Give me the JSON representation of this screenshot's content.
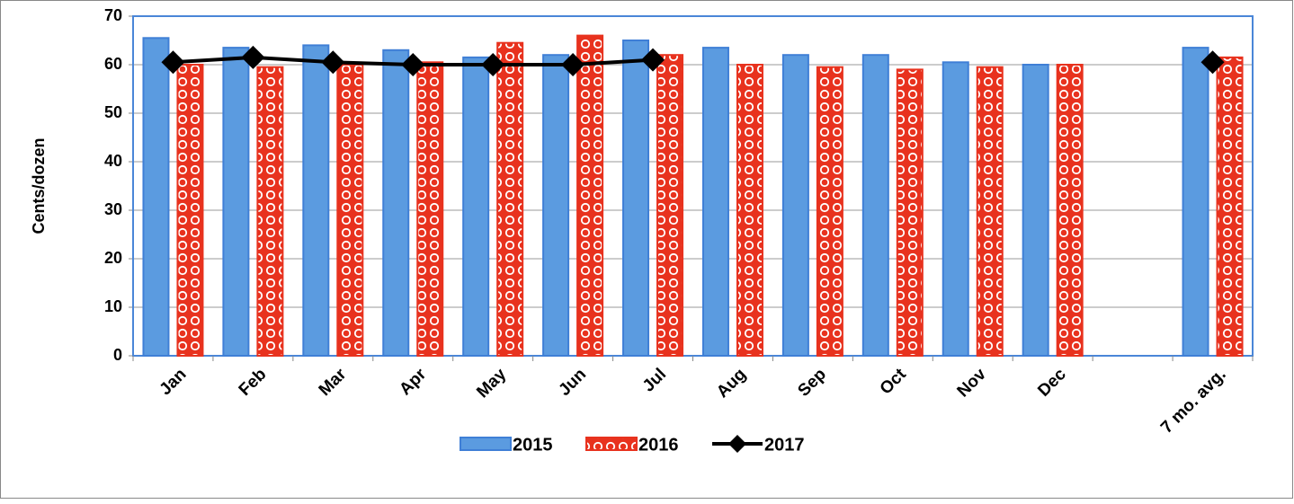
{
  "chart_data": {
    "type": "bar",
    "y_label": "Cents/dozen",
    "categories": [
      "Jan",
      "Feb",
      "Mar",
      "Apr",
      "May",
      "Jun",
      "Jul",
      "Aug",
      "Sep",
      "Oct",
      "Nov",
      "Dec",
      null,
      "7 mo. avg."
    ],
    "series": [
      {
        "name": "2015",
        "type": "bar",
        "color": "#5b9be0",
        "values": [
          65.5,
          63.5,
          64,
          63,
          61.5,
          62,
          65,
          63.5,
          62,
          62,
          60.5,
          60,
          null,
          63.5
        ]
      },
      {
        "name": "2016",
        "type": "bar",
        "color": "#e8321e",
        "values": [
          60,
          59.5,
          60,
          60.5,
          64.5,
          66,
          62,
          60,
          59.5,
          59,
          59.5,
          60,
          null,
          61.5
        ]
      },
      {
        "name": "2017",
        "type": "line",
        "color": "#000000",
        "values": [
          60.5,
          61.5,
          60.5,
          60,
          60,
          60,
          61,
          null,
          null,
          null,
          null,
          null,
          null,
          60.5
        ]
      }
    ],
    "ylim": [
      0,
      70
    ],
    "yticks": [
      0,
      10,
      20,
      30,
      40,
      50,
      60,
      70
    ],
    "grid": true
  }
}
